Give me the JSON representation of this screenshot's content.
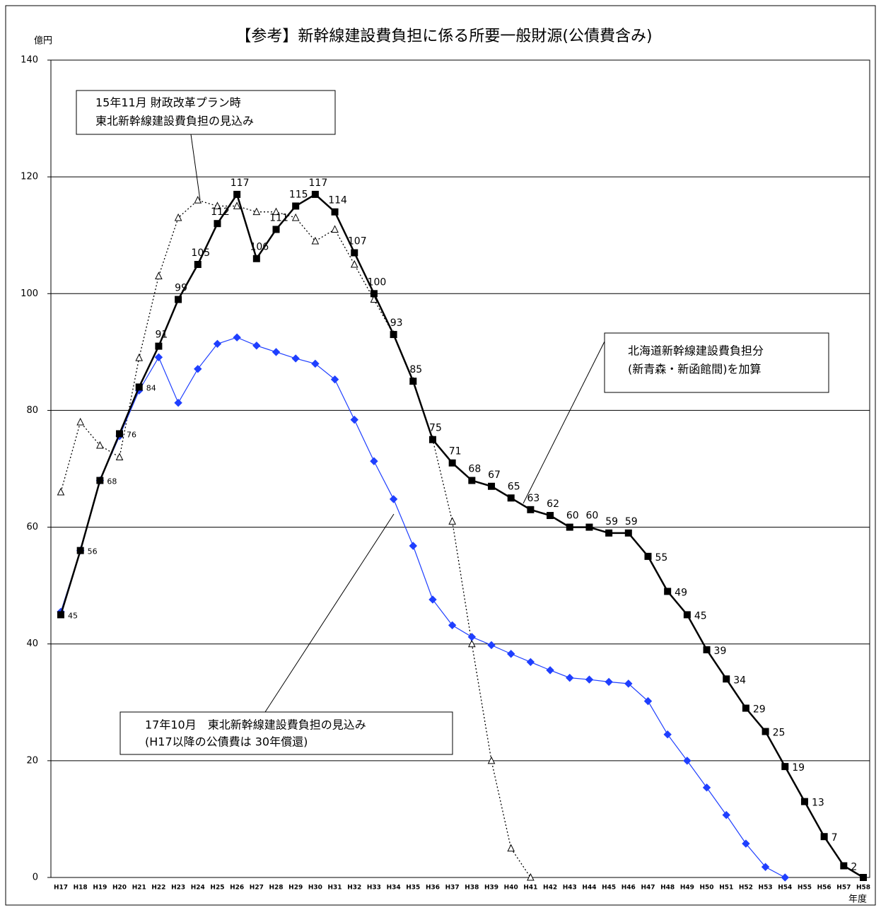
{
  "chart_data": {
    "type": "line",
    "title": "【参考】新幹線建設費負担に係る所要一般財源(公債費含み)",
    "y_label": "億円",
    "x_label": "年度",
    "categories": [
      "H17",
      "H18",
      "H19",
      "H20",
      "H21",
      "H22",
      "H23",
      "H24",
      "H25",
      "H26",
      "H27",
      "H28",
      "H29",
      "H30",
      "H31",
      "H32",
      "H33",
      "H34",
      "H35",
      "H36",
      "H37",
      "H38",
      "H39",
      "H40",
      "H41",
      "H42",
      "H43",
      "H44",
      "H45",
      "H46",
      "H47",
      "H48",
      "H49",
      "H50",
      "H51",
      "H52",
      "H53",
      "H54",
      "H55",
      "H56",
      "H57",
      "H58"
    ],
    "ylim": [
      0,
      140
    ],
    "yticks": [
      0,
      20,
      40,
      60,
      80,
      100,
      120,
      140
    ],
    "grid": true,
    "series": [
      {
        "color": "#000000",
        "marker": "triangle",
        "dash": "dotted",
        "annotation": [
          "15年11月 財政改革プラン時",
          "東北新幹線建設費負担の見込み"
        ],
        "values": [
          66,
          78,
          74,
          72,
          89,
          103,
          113,
          116,
          115,
          115,
          114,
          114,
          113,
          109,
          111,
          105,
          99,
          93,
          85,
          75,
          61,
          40,
          20,
          5,
          0,
          null,
          null,
          null,
          null,
          null,
          null,
          null,
          null,
          null,
          null,
          null,
          null,
          null,
          null,
          null,
          null,
          null
        ]
      },
      {
        "color": "#1f3fff",
        "marker": "diamond",
        "dash": "solid",
        "annotation": [
          "17年10月　東北新幹線建設費負担の見込み",
          "(H17以降の公債費は 30年償還)"
        ],
        "values": [
          45.5,
          56,
          68,
          75.6,
          83.4,
          89.1,
          81.3,
          87.1,
          91.4,
          92.5,
          91.1,
          90,
          88.9,
          88,
          85.3,
          78.4,
          71.3,
          64.8,
          56.8,
          47.6,
          43.2,
          41.2,
          39.8,
          38.3,
          36.9,
          35.5,
          34.2,
          33.9,
          33.5,
          33.2,
          30.2,
          24.5,
          20,
          15.4,
          10.7,
          5.8,
          1.8,
          0,
          null,
          null,
          null,
          null
        ]
      },
      {
        "color": "#000000",
        "marker": "square",
        "dash": "solid",
        "annotation": [
          "北海道新幹線建設費負担分",
          "(新青森・新函館間)を加算"
        ],
        "values": [
          45,
          56,
          68,
          76,
          84,
          91,
          99,
          105,
          112,
          117,
          106,
          111,
          115,
          117,
          114,
          107,
          100,
          93,
          85,
          75,
          71,
          68,
          67,
          65,
          63,
          62,
          60,
          60,
          59,
          59,
          55,
          49,
          45,
          39,
          34,
          29,
          25,
          19,
          13,
          7,
          2,
          0
        ],
        "value_labels": [
          "45",
          "56",
          "68",
          "76",
          "84",
          "91",
          "99",
          "105",
          "112",
          "117",
          "106",
          "111",
          "115",
          "117",
          "114",
          "107",
          "100",
          "93",
          "85",
          "75",
          "71",
          "68",
          "67",
          "65",
          "63",
          "62",
          "60",
          "60",
          "59",
          "59",
          "55",
          "49",
          "45",
          "39",
          "34",
          "29",
          "25",
          "19",
          "13",
          "7",
          "2",
          null
        ]
      }
    ]
  }
}
